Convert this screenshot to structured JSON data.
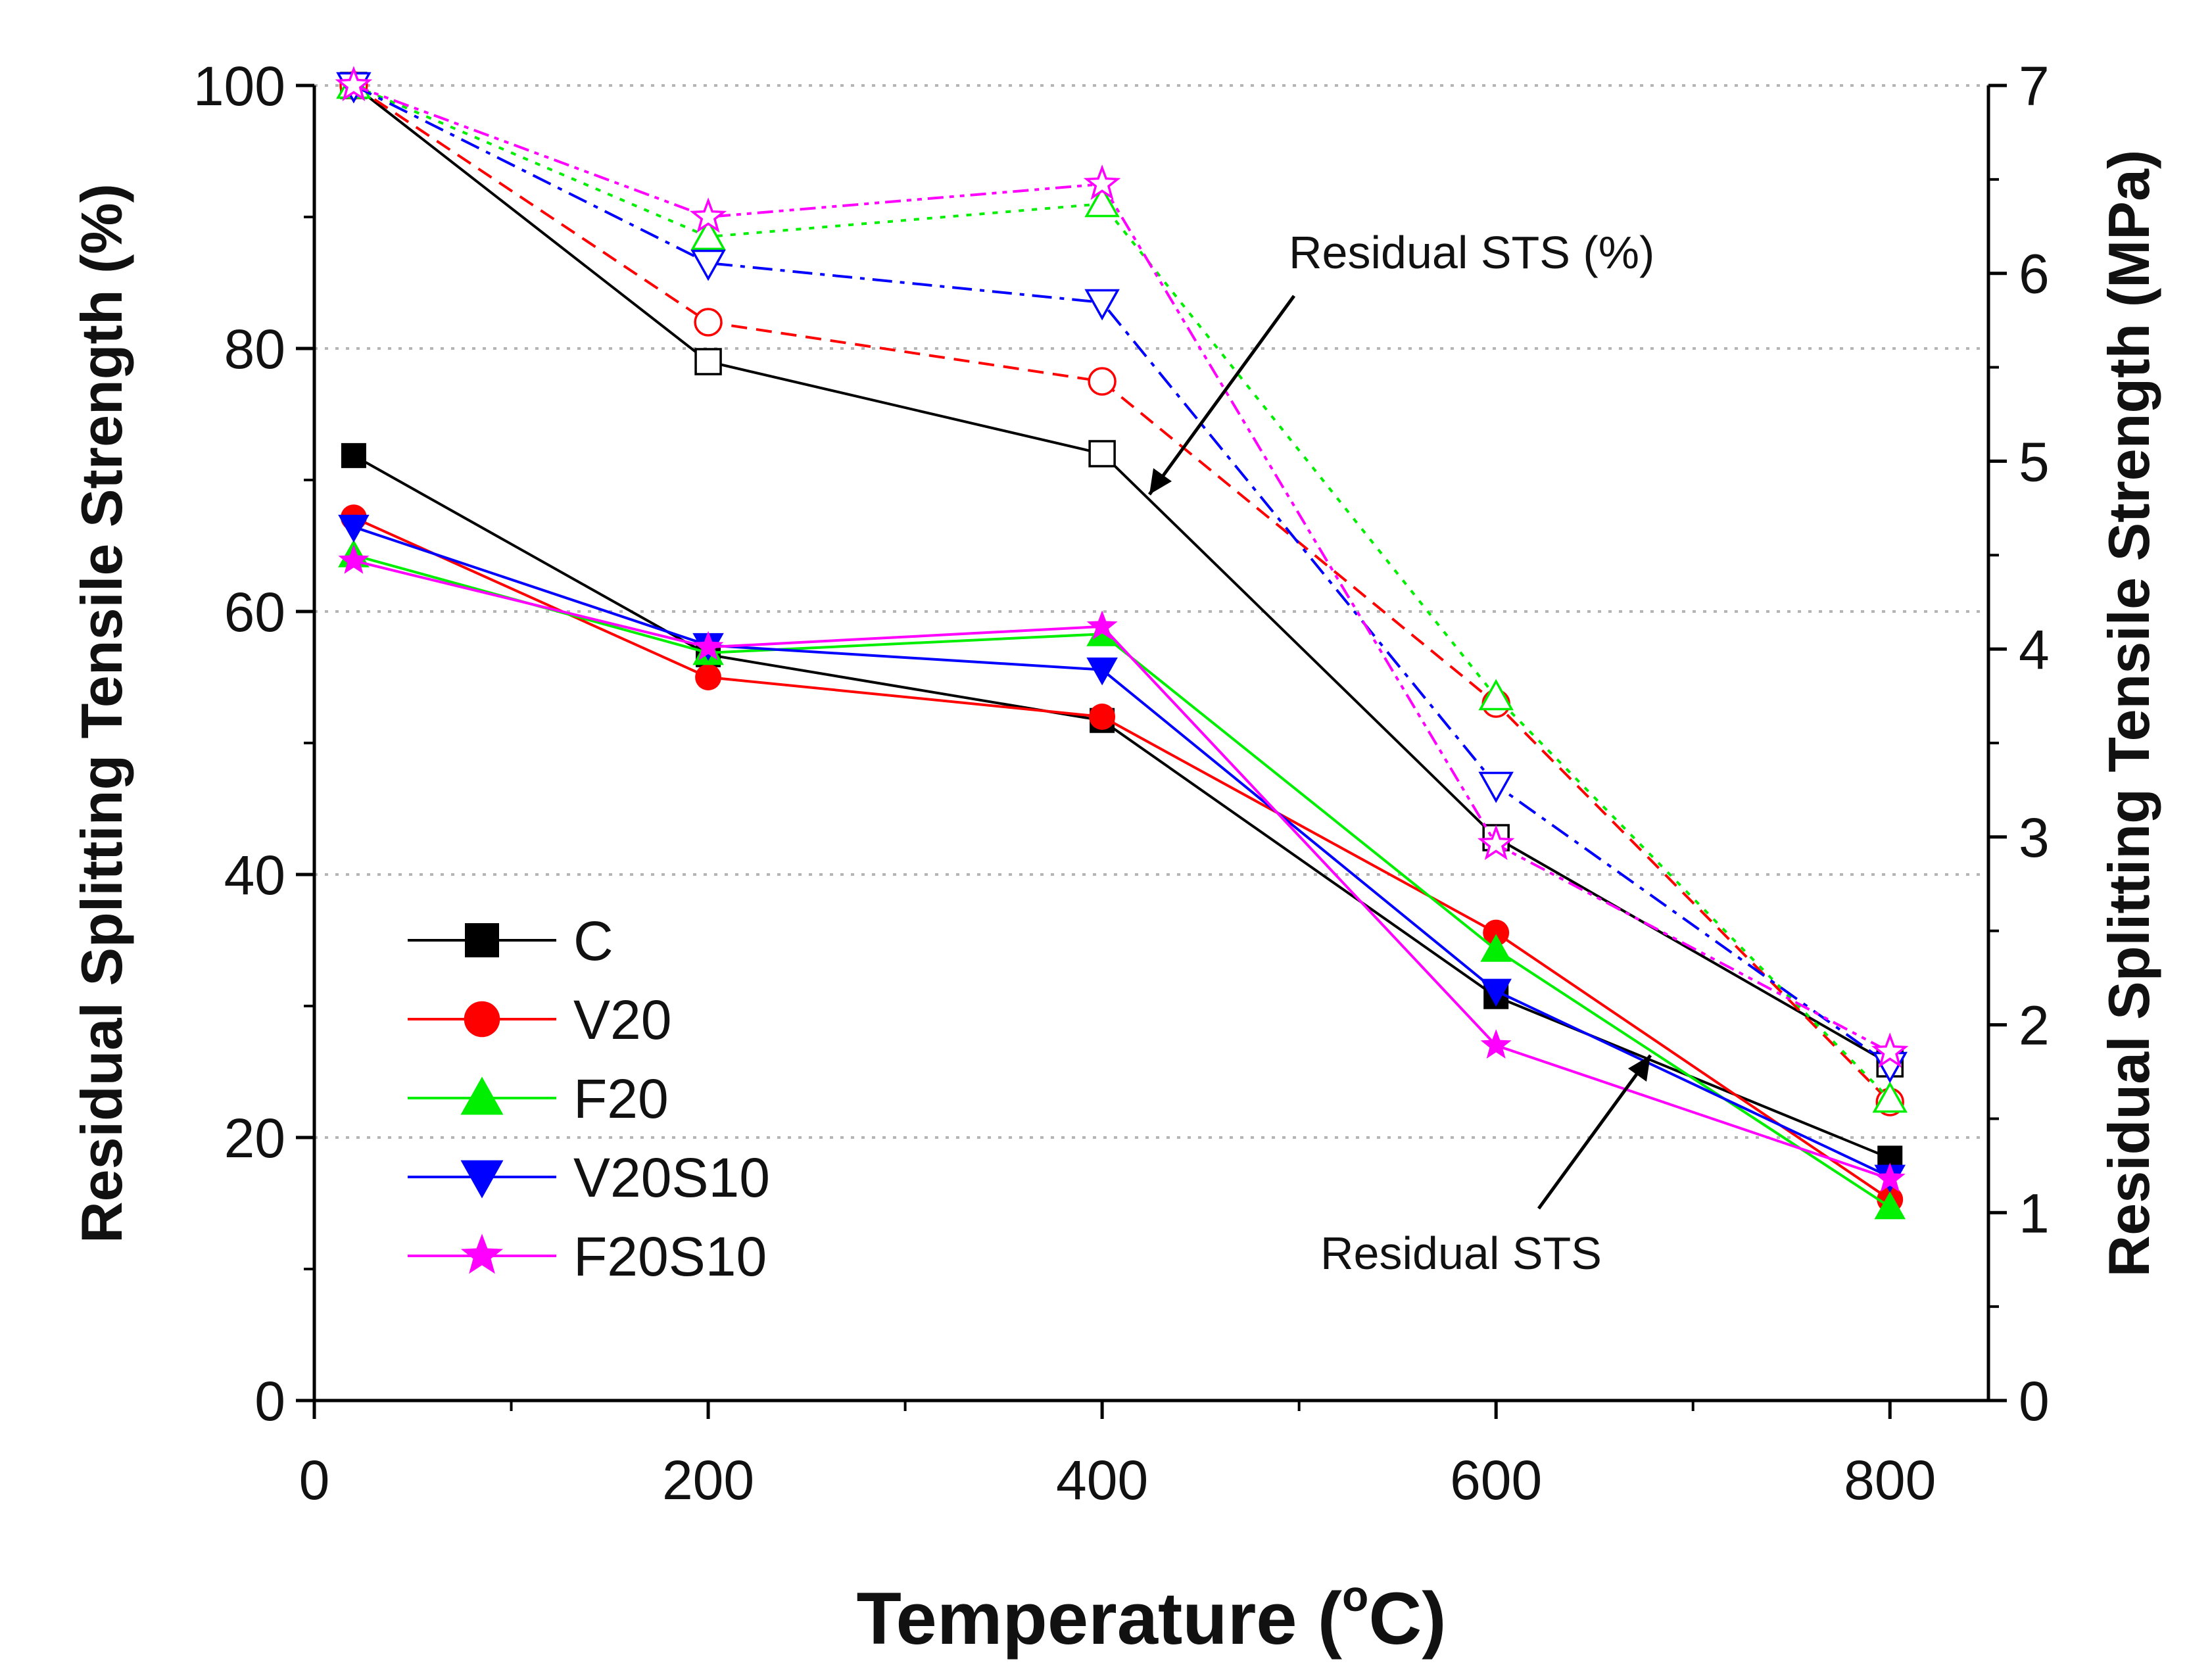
{
  "chart_data": {
    "type": "line",
    "x": [
      20,
      200,
      400,
      600,
      800
    ],
    "xlabel": "Temperature (°C)",
    "xlabel_main": "Temperature (",
    "xlabel_sup": "o",
    "xlabel_end": "C)",
    "ylabel": "Residual Splitting Tensile Strength (%)",
    "y2label": "Residual Splitting Tensile Strength (MPa)",
    "xlim": [
      0,
      850
    ],
    "ylim": [
      0,
      100
    ],
    "y2lim": [
      0,
      7
    ],
    "xticks": [
      "0",
      "200",
      "400",
      "600",
      "800"
    ],
    "yticks": [
      "0",
      "20",
      "40",
      "60",
      "80",
      "100"
    ],
    "y2ticks": [
      "0",
      "1",
      "2",
      "3",
      "4",
      "5",
      "6",
      "7"
    ],
    "grid": "horizontal dotted",
    "legend_position": "lower-left",
    "series": [
      {
        "name": "C",
        "color": "#000000",
        "marker": "square",
        "strength_mpa": [
          5.03,
          3.97,
          3.62,
          2.15,
          1.29
        ],
        "residual_percent": [
          100,
          79,
          72,
          42.8,
          25.6
        ]
      },
      {
        "name": "V20",
        "color": "#ff0000",
        "marker": "circle",
        "strength_mpa": [
          4.7,
          3.85,
          3.64,
          2.49,
          1.07
        ],
        "residual_percent": [
          100,
          82,
          77.5,
          53,
          22.7
        ]
      },
      {
        "name": "F20",
        "color": "#00ee00",
        "marker": "triangle-up",
        "strength_mpa": [
          4.5,
          3.98,
          4.08,
          2.4,
          1.03
        ],
        "residual_percent": [
          100,
          88.5,
          91,
          53.5,
          22.9
        ]
      },
      {
        "name": "V20S10",
        "color": "#0000ff",
        "marker": "triangle-down",
        "strength_mpa": [
          4.65,
          4.02,
          3.89,
          2.18,
          1.19
        ],
        "residual_percent": [
          100,
          86.5,
          83.5,
          46.8,
          25.5
        ]
      },
      {
        "name": "F20S10",
        "color": "#ff00ff",
        "marker": "star",
        "strength_mpa": [
          4.47,
          4.01,
          4.12,
          1.89,
          1.18
        ],
        "residual_percent": [
          100,
          90,
          92.5,
          42.3,
          26.5
        ]
      }
    ],
    "annotations": [
      {
        "text": "Residual STS (%)"
      },
      {
        "text": "Residual STS"
      }
    ]
  }
}
